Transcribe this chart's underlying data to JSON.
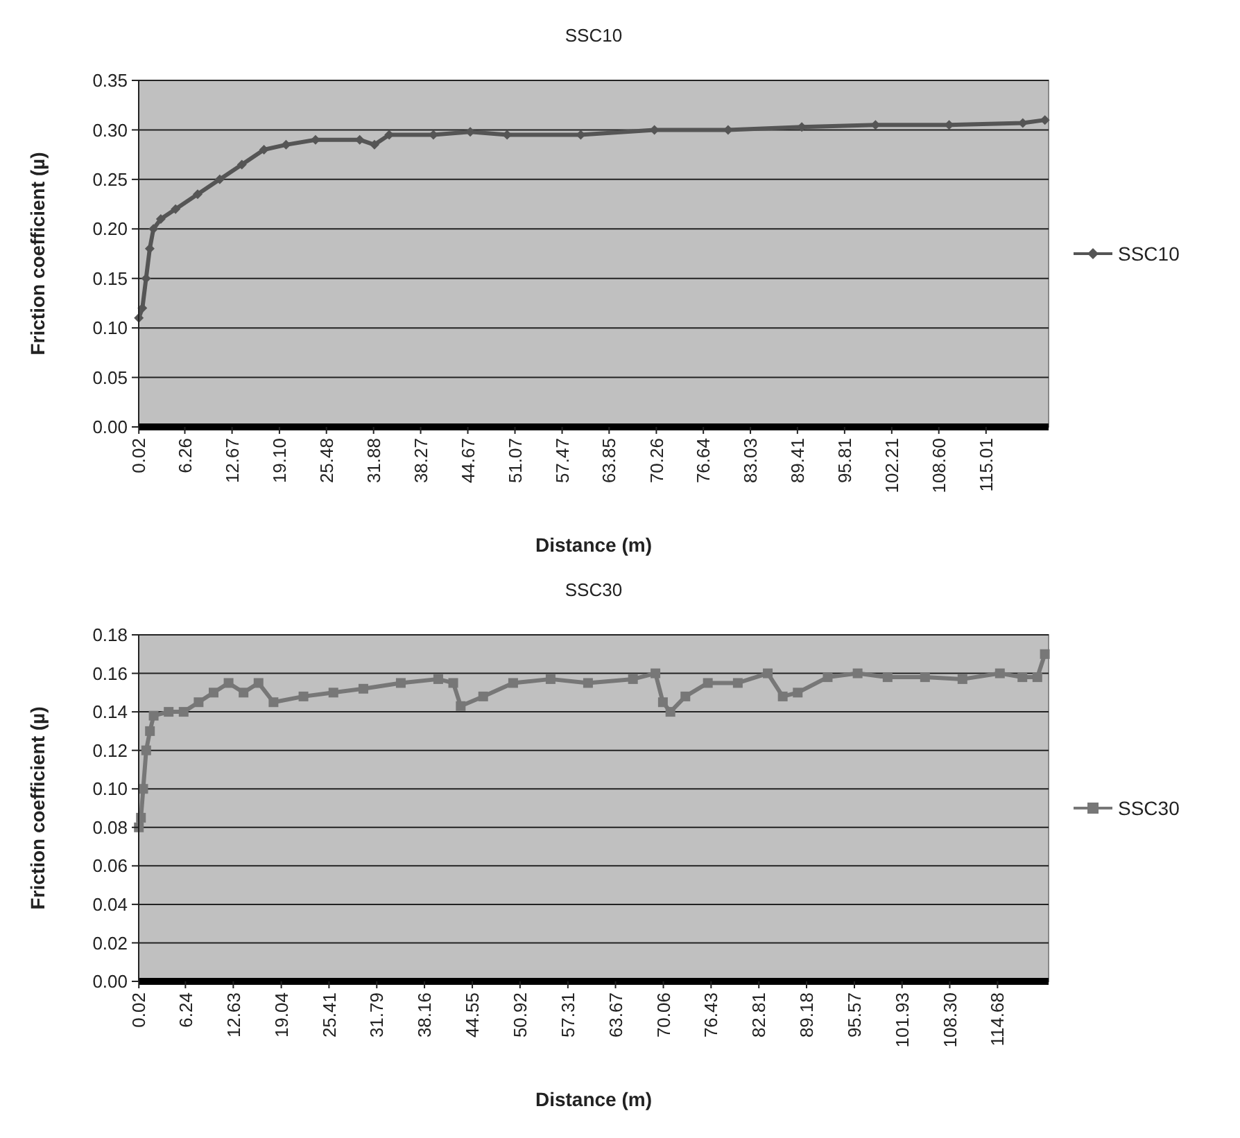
{
  "chart_data": [
    {
      "type": "line",
      "title": "SSC10",
      "xlabel": "Distance (m)",
      "ylabel": "Friction coefficient (µ)",
      "xlim": [
        0,
        123.5
      ],
      "ylim": [
        0,
        0.35
      ],
      "xticks": [
        0.02,
        6.26,
        12.67,
        {
          "value": 19.1,
          "label": "19.10"
        },
        25.48,
        31.88,
        38.27,
        44.67,
        51.07,
        57.47,
        63.85,
        70.26,
        76.64,
        83.03,
        89.41,
        95.81,
        102.21,
        {
          "value": 108.6,
          "label": "108.60"
        },
        115.01
      ],
      "yticks": [
        {
          "value": 0,
          "label": "0.00"
        },
        0.05,
        {
          "value": 0.1,
          "label": "0.10"
        },
        0.15,
        {
          "value": 0.2,
          "label": "0.20"
        },
        0.25,
        {
          "value": 0.3,
          "label": "0.30"
        },
        0.35
      ],
      "grid": "y",
      "legend": "right",
      "marker": "diamond",
      "line_style": "solid",
      "series": [
        {
          "name": "SSC10",
          "color": "#555555",
          "x": [
            0.02,
            0.5,
            1,
            1.5,
            2,
            3,
            5,
            8,
            11,
            14,
            17,
            20,
            24,
            30,
            32,
            34,
            40,
            45,
            50,
            60,
            70,
            80,
            90,
            100,
            110,
            120,
            123
          ],
          "values": [
            0.11,
            0.12,
            0.15,
            0.18,
            0.2,
            0.21,
            0.22,
            0.235,
            0.25,
            0.265,
            0.28,
            0.285,
            0.29,
            0.29,
            0.285,
            0.295,
            0.295,
            0.298,
            0.295,
            0.295,
            0.3,
            0.3,
            0.303,
            0.305,
            0.305,
            0.307,
            0.31
          ]
        }
      ]
    },
    {
      "type": "line",
      "title": "SSC30",
      "xlabel": "Distance (m)",
      "ylabel": "Friction coefficient (µ)",
      "xlim": [
        0,
        121.5
      ],
      "ylim": [
        0,
        0.18
      ],
      "xticks": [
        0.02,
        6.24,
        12.63,
        19.04,
        25.41,
        31.79,
        38.16,
        44.55,
        50.92,
        57.31,
        63.67,
        70.06,
        76.43,
        82.81,
        89.18,
        95.57,
        101.93,
        {
          "value": 108.3,
          "label": "108.30"
        },
        114.68
      ],
      "yticks": [
        {
          "value": 0,
          "label": "0.00"
        },
        0.02,
        0.04,
        0.06,
        0.08,
        {
          "value": 0.1,
          "label": "0.10"
        },
        0.12,
        0.14,
        0.16,
        0.18
      ],
      "grid": "y",
      "legend": "right",
      "marker": "square",
      "line_style": "solid",
      "series": [
        {
          "name": "SSC30",
          "color": "#777777",
          "x": [
            0.02,
            0.3,
            0.6,
            1,
            1.5,
            2,
            4,
            6,
            8,
            10,
            12,
            14,
            16,
            18,
            22,
            26,
            30,
            35,
            40,
            42,
            43,
            46,
            50,
            55,
            60,
            66,
            69,
            70,
            71,
            73,
            76,
            80,
            84,
            86,
            88,
            92,
            96,
            100,
            105,
            110,
            115,
            118,
            120,
            121
          ],
          "values": [
            0.08,
            0.085,
            0.1,
            0.12,
            0.13,
            0.138,
            0.14,
            0.14,
            0.145,
            0.15,
            0.155,
            0.15,
            0.155,
            0.145,
            0.148,
            0.15,
            0.152,
            0.155,
            0.157,
            0.155,
            0.143,
            0.148,
            0.155,
            0.157,
            0.155,
            0.157,
            0.16,
            0.145,
            0.14,
            0.148,
            0.155,
            0.155,
            0.16,
            0.148,
            0.15,
            0.158,
            0.16,
            0.158,
            0.158,
            0.157,
            0.16,
            0.158,
            0.158,
            0.17
          ]
        }
      ]
    }
  ]
}
